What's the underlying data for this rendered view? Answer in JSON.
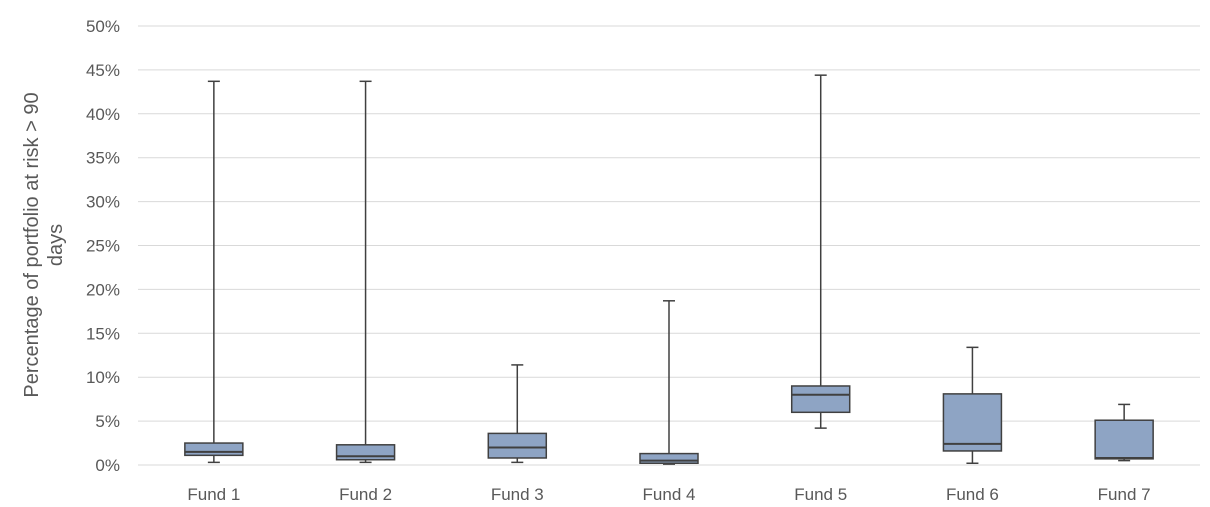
{
  "chart_data": {
    "type": "box",
    "title": "",
    "xlabel": "",
    "ylabel_lines": [
      "Percentage of portfolio at risk > 90",
      "days"
    ],
    "ylim": [
      0,
      50
    ],
    "y_ticks": [
      0,
      5,
      10,
      15,
      20,
      25,
      30,
      35,
      40,
      45,
      50
    ],
    "y_tick_labels": [
      "0%",
      "5%",
      "10%",
      "15%",
      "20%",
      "25%",
      "30%",
      "35%",
      "40%",
      "45%",
      "50%"
    ],
    "grid": true,
    "box_color": "#8ea4c4",
    "categories": [
      "Fund 1",
      "Fund 2",
      "Fund 3",
      "Fund 4",
      "Fund 5",
      "Fund 6",
      "Fund 7"
    ],
    "boxes": [
      {
        "min": 0.3,
        "q1": 1.1,
        "median": 1.5,
        "q3": 2.5,
        "max": 43.7
      },
      {
        "min": 0.3,
        "q1": 0.6,
        "median": 1.0,
        "q3": 2.3,
        "max": 43.7
      },
      {
        "min": 0.3,
        "q1": 0.8,
        "median": 2.0,
        "q3": 3.6,
        "max": 11.4
      },
      {
        "min": 0.1,
        "q1": 0.2,
        "median": 0.5,
        "q3": 1.3,
        "max": 18.7
      },
      {
        "min": 4.2,
        "q1": 6.0,
        "median": 8.0,
        "q3": 9.0,
        "max": 44.4
      },
      {
        "min": 0.2,
        "q1": 1.6,
        "median": 2.4,
        "q3": 8.1,
        "max": 13.4
      },
      {
        "min": 0.5,
        "q1": 0.7,
        "median": 0.8,
        "q3": 5.1,
        "max": 6.9
      }
    ]
  }
}
